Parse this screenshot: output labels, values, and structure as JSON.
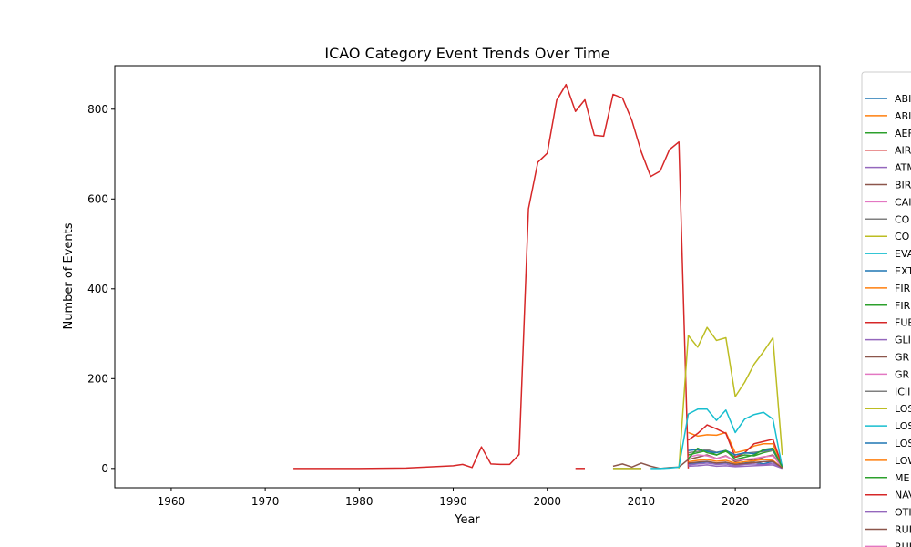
{
  "chart_data": {
    "type": "line",
    "title": "ICAO Category Event Trends Over Time",
    "xlabel": "Year",
    "ylabel": "Number of Events",
    "xlim": [
      1954,
      2029
    ],
    "ylim": [
      -43,
      897
    ],
    "xticks": [
      1960,
      1970,
      1980,
      1990,
      2000,
      2010,
      2020
    ],
    "yticks": [
      0,
      200,
      400,
      600,
      800
    ],
    "grid": false,
    "legend_position": "right, outside plot (clipped)",
    "legend_entries": [
      "ABI",
      "ABI",
      "AEF",
      "AIR",
      "ATM",
      "BIR",
      "CAI",
      "CO",
      "CO",
      "EVA",
      "EXT",
      "FIR",
      "FIR",
      "FUE",
      "GLI",
      "GR",
      "GR",
      "ICII",
      "LOS",
      "LOS",
      "LOS",
      "LOW",
      "ME",
      "NAV",
      "OTI",
      "RUI",
      "RUI"
    ],
    "series": [
      {
        "color": "#1f77b4",
        "x": [
          2015,
          2016,
          2017,
          2018,
          2019,
          2020,
          2021,
          2022,
          2023,
          2024,
          2025
        ],
        "y": [
          10,
          12,
          15,
          11,
          13,
          9,
          12,
          14,
          10,
          16,
          2
        ]
      },
      {
        "color": "#ff7f0e",
        "x": [
          2015,
          2016,
          2017,
          2018,
          2019,
          2020,
          2021,
          2022,
          2023,
          2024,
          2025
        ],
        "y": [
          80,
          72,
          75,
          74,
          80,
          35,
          40,
          50,
          55,
          55,
          5
        ]
      },
      {
        "color": "#2ca02c",
        "x": [
          2015,
          2016,
          2017,
          2018,
          2019,
          2020,
          2021,
          2022,
          2023,
          2024,
          2025
        ],
        "y": [
          30,
          35,
          40,
          30,
          38,
          25,
          30,
          28,
          35,
          40,
          3
        ]
      },
      {
        "color": "#d62728",
        "x": [
          1973,
          1975,
          1980,
          1985,
          1990,
          1991,
          1992,
          1993,
          1994,
          1995,
          1996,
          1997,
          1998,
          1999,
          2000,
          2001,
          2002,
          2003,
          2004,
          2005,
          2006,
          2007,
          2008,
          2009,
          2010,
          2011,
          2012,
          2013,
          2014,
          2015
        ],
        "y": [
          0,
          0,
          0,
          1,
          6,
          9,
          2,
          48,
          10,
          9,
          9,
          31,
          578,
          682,
          702,
          820,
          855,
          795,
          821,
          742,
          740,
          833,
          825,
          775,
          705,
          650,
          662,
          710,
          727,
          0
        ]
      },
      {
        "color": "#d62728",
        "x": [
          2003,
          2004
        ],
        "y": [
          0,
          0
        ]
      },
      {
        "color": "#d62728",
        "x": [
          2015,
          2016,
          2017,
          2018,
          2019,
          2020,
          2021,
          2022,
          2023,
          2024,
          2025
        ],
        "y": [
          63,
          78,
          97,
          88,
          78,
          25,
          35,
          55,
          60,
          65,
          5
        ]
      },
      {
        "color": "#9467bd",
        "x": [
          2015,
          2016,
          2017,
          2018,
          2019,
          2020,
          2021,
          2022,
          2023,
          2024,
          2025
        ],
        "y": [
          8,
          10,
          12,
          9,
          10,
          6,
          9,
          10,
          8,
          12,
          1
        ]
      },
      {
        "color": "#8c564b",
        "x": [
          2007,
          2008,
          2009,
          2010,
          2011,
          2012,
          2013,
          2014,
          2015,
          2016,
          2017,
          2018,
          2019,
          2020,
          2021,
          2022,
          2023,
          2024,
          2025
        ],
        "y": [
          5,
          10,
          3,
          12,
          5,
          0,
          2,
          3,
          20,
          25,
          30,
          22,
          28,
          15,
          20,
          18,
          25,
          30,
          2
        ]
      },
      {
        "color": "#e377c2",
        "x": [
          2015,
          2016,
          2017,
          2018,
          2019,
          2020,
          2021,
          2022,
          2023,
          2024,
          2025
        ],
        "y": [
          25,
          30,
          28,
          22,
          27,
          18,
          20,
          22,
          26,
          28,
          2
        ]
      },
      {
        "color": "#7f7f7f",
        "x": [
          2007,
          2008,
          2009,
          2010
        ],
        "y": [
          0,
          0,
          0,
          0
        ]
      },
      {
        "color": "#7f7f7f",
        "x": [
          2015,
          2016,
          2017,
          2018,
          2019,
          2020,
          2021,
          2022,
          2023,
          2024,
          2025
        ],
        "y": [
          35,
          38,
          42,
          36,
          40,
          30,
          34,
          36,
          38,
          40,
          4
        ]
      },
      {
        "color": "#bcbd22",
        "x": [
          2007,
          2008,
          2009,
          2010
        ],
        "y": [
          0,
          0,
          0,
          0
        ]
      },
      {
        "color": "#bcbd22",
        "x": [
          2014,
          2015,
          2016,
          2017,
          2018,
          2019,
          2020,
          2021,
          2022,
          2023,
          2024,
          2025
        ],
        "y": [
          0,
          296,
          270,
          314,
          285,
          291,
          160,
          192,
          232,
          260,
          291,
          30
        ]
      },
      {
        "color": "#17becf",
        "x": [
          2011,
          2012,
          2013,
          2014,
          2015,
          2016,
          2017,
          2018,
          2019,
          2020,
          2021,
          2022,
          2023,
          2024,
          2025
        ],
        "y": [
          0,
          0,
          1,
          3,
          121,
          132,
          132,
          107,
          130,
          80,
          110,
          120,
          125,
          110,
          2
        ]
      },
      {
        "color": "#1f77b4",
        "x": [
          2015,
          2016,
          2017,
          2018,
          2019,
          2020,
          2021,
          2022,
          2023,
          2024,
          2025
        ],
        "y": [
          40,
          42,
          38,
          35,
          40,
          30,
          35,
          33,
          40,
          42,
          3
        ]
      },
      {
        "color": "#2ca02c",
        "x": [
          2015,
          2016,
          2017,
          2018,
          2019,
          2020,
          2021,
          2022,
          2023,
          2024,
          2025
        ],
        "y": [
          22,
          45,
          35,
          30,
          40,
          20,
          25,
          30,
          42,
          45,
          2
        ]
      },
      {
        "color": "#ff7f0e",
        "x": [
          2015,
          2016,
          2017,
          2018,
          2019,
          2020,
          2021,
          2022,
          2023,
          2024,
          2025
        ],
        "y": [
          15,
          18,
          20,
          16,
          18,
          12,
          15,
          17,
          20,
          18,
          1
        ]
      },
      {
        "color": "#9467bd",
        "x": [
          2015,
          2016,
          2017,
          2018,
          2019,
          2020,
          2021,
          2022,
          2023,
          2024,
          2025
        ],
        "y": [
          5,
          6,
          8,
          5,
          6,
          4,
          5,
          6,
          7,
          8,
          0
        ]
      },
      {
        "color": "#8c564b",
        "x": [
          2015,
          2016,
          2017,
          2018,
          2019,
          2020,
          2021,
          2022,
          2023,
          2024,
          2025
        ],
        "y": [
          12,
          14,
          16,
          12,
          14,
          9,
          11,
          13,
          15,
          16,
          1
        ]
      }
    ]
  }
}
